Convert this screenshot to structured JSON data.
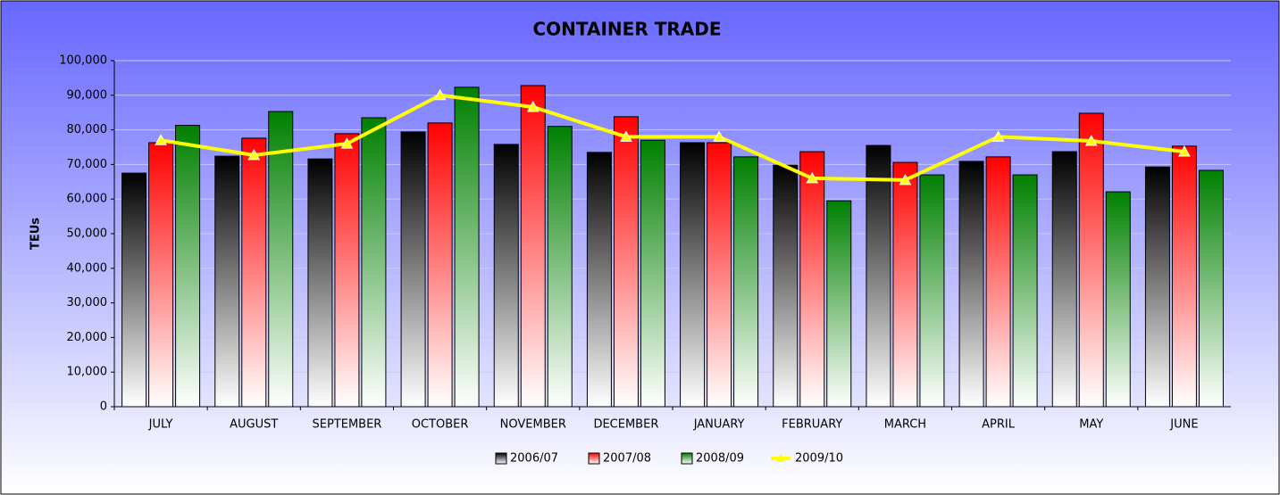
{
  "chart_data": {
    "type": "bar",
    "title": "CONTAINER TRADE",
    "y_label": "TEUs",
    "categories": [
      "JULY",
      "AUGUST",
      "SEPTEMBER",
      "OCTOBER",
      "NOVEMBER",
      "DECEMBER",
      "JANUARY",
      "FEBRUARY",
      "MARCH",
      "APRIL",
      "MAY",
      "JUNE"
    ],
    "series": [
      {
        "name": "2006/07",
        "type": "bar",
        "color": "#000000",
        "values": [
          67500,
          72400,
          71600,
          79400,
          75800,
          73500,
          76300,
          69800,
          75500,
          70900,
          73700,
          69300
        ]
      },
      {
        "name": "2007/08",
        "type": "bar",
        "color": "#ff0000",
        "values": [
          76300,
          77600,
          78900,
          82000,
          92800,
          83800,
          76300,
          73700,
          70600,
          72200,
          84800,
          75300
        ]
      },
      {
        "name": "2008/09",
        "type": "bar",
        "color": "#008000",
        "values": [
          81300,
          85300,
          83500,
          92300,
          81000,
          77000,
          72200,
          59500,
          67000,
          67000,
          62100,
          68300
        ]
      },
      {
        "name": "2009/10",
        "type": "line",
        "color": "#ffff00",
        "values": [
          77000,
          72700,
          76000,
          90000,
          86600,
          78000,
          78000,
          66000,
          65500,
          78000,
          76800,
          73700
        ]
      }
    ],
    "ylim": [
      0,
      100000
    ],
    "yticks": [
      0,
      {
        "value": 10000,
        "label": "10,000"
      },
      {
        "value": 20000,
        "label": "20,000"
      },
      {
        "value": 30000,
        "label": "30,000"
      },
      {
        "value": 40000,
        "label": "40,000"
      },
      {
        "value": 50000,
        "label": "50,000"
      },
      {
        "value": 60000,
        "label": "60,000"
      },
      {
        "value": 70000,
        "label": "70,000"
      },
      {
        "value": 80000,
        "label": "80,000"
      },
      {
        "value": 90000,
        "label": "90,000"
      },
      {
        "value": 100000,
        "label": "100,000"
      }
    ],
    "grid": true,
    "legend": "bottom"
  }
}
